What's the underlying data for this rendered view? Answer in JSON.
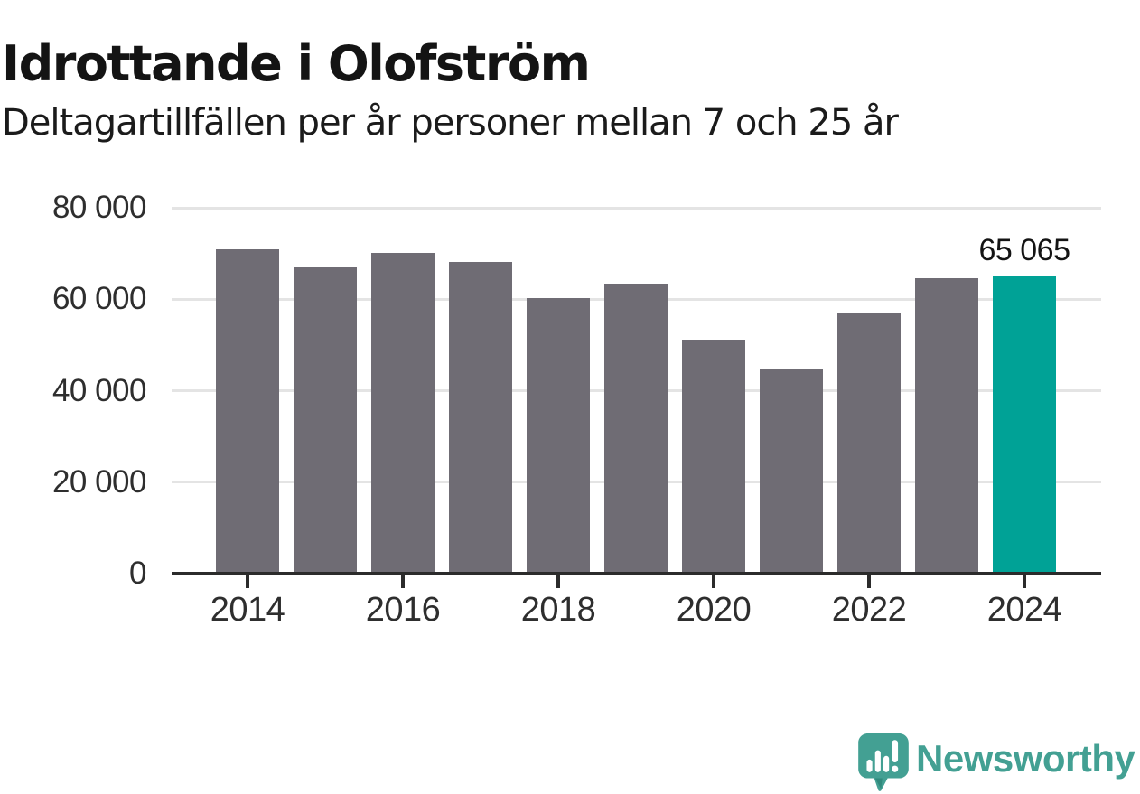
{
  "header": {
    "title": "Idrottande i Olofström",
    "subtitle": "Deltagartillfällen per år personer mellan 7 och 25 år"
  },
  "chart_data": {
    "type": "bar",
    "title": "Idrottande i Olofström",
    "subtitle": "Deltagartillfällen per år personer mellan 7 och 25 år",
    "categories": [
      "2014",
      "2015",
      "2016",
      "2017",
      "2018",
      "2019",
      "2020",
      "2021",
      "2022",
      "2023",
      "2024"
    ],
    "values": [
      71000,
      66900,
      70200,
      68200,
      60200,
      63400,
      51200,
      44800,
      56800,
      64600,
      65065
    ],
    "ylim": [
      0,
      80000
    ],
    "ytick_values": [
      0,
      20000,
      40000,
      60000,
      80000
    ],
    "ytick_labels": [
      "0",
      "20 000",
      "40 000",
      "60 000",
      "80 000"
    ],
    "xtick_indices": [
      0,
      2,
      4,
      6,
      8,
      10
    ],
    "xtick_labels": [
      "2014",
      "2016",
      "2018",
      "2020",
      "2022",
      "2024"
    ],
    "grid": "horizontal",
    "legend": "none",
    "bar_color": "#6f6c74",
    "highlight_index": 10,
    "highlight_color": "#00a296",
    "annotation": {
      "bar_index": 10,
      "text": "65 065"
    }
  },
  "footer": {
    "brand": "Newsworthy",
    "brand_color": "#43a093",
    "logo_icon": "newsworthy-speech-bubble-bar-chart-icon"
  }
}
